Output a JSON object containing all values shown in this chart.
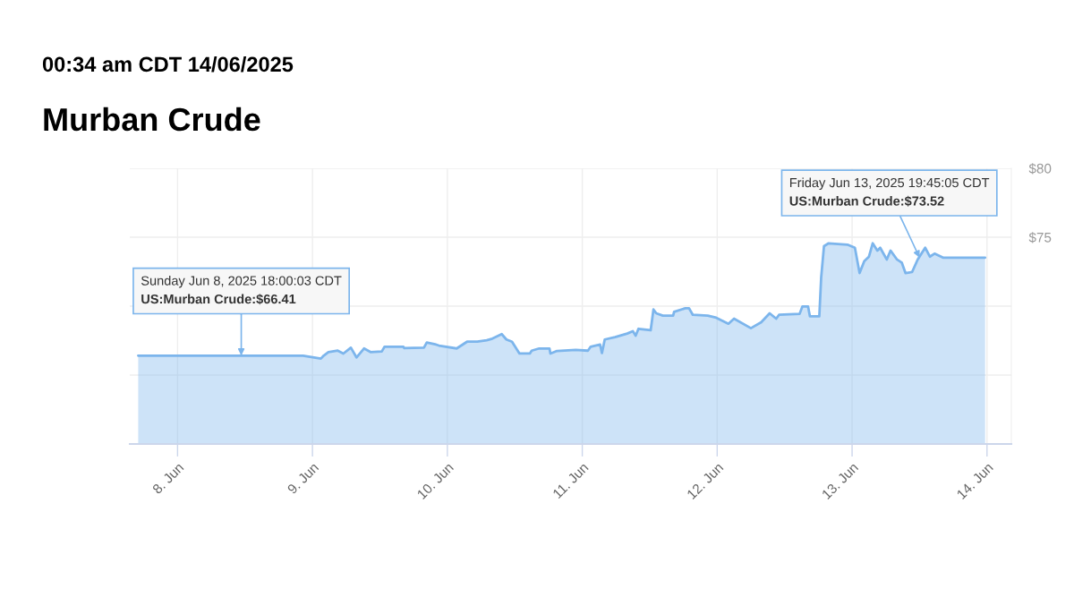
{
  "chart_data": {
    "type": "area",
    "title": "Murban Crude",
    "subtitle": "00:34 am CDT 14/06/2025",
    "x": [
      "2025-06-07T17:00",
      "2025-06-08T22:20",
      "2025-06-09T01:30",
      "2025-06-09T02:00",
      "2025-06-09T02:50",
      "2025-06-09T04:30",
      "2025-06-09T05:30",
      "2025-06-09T06:50",
      "2025-06-09T07:50",
      "2025-06-09T09:10",
      "2025-06-09T10:20",
      "2025-06-09T12:20",
      "2025-06-09T12:50",
      "2025-06-09T16:10",
      "2025-06-09T16:20",
      "2025-06-09T19:50",
      "2025-06-09T20:20",
      "2025-06-09T22:00",
      "2025-06-09T22:30",
      "2025-06-10T01:40",
      "2025-06-10T03:30",
      "2025-06-10T05:20",
      "2025-06-10T07:00",
      "2025-06-10T08:00",
      "2025-06-10T09:40",
      "2025-06-10T10:30",
      "2025-06-10T11:30",
      "2025-06-10T12:50",
      "2025-06-10T14:40",
      "2025-06-10T15:00",
      "2025-06-10T16:20",
      "2025-06-10T18:10",
      "2025-06-10T18:20",
      "2025-06-10T19:30",
      "2025-06-10T22:50",
      "2025-06-11T01:00",
      "2025-06-11T01:30",
      "2025-06-11T03:10",
      "2025-06-11T03:30",
      "2025-06-11T04:00",
      "2025-06-11T05:50",
      "2025-06-11T08:00",
      "2025-06-11T09:00",
      "2025-06-11T09:30",
      "2025-06-11T10:00",
      "2025-06-11T12:10",
      "2025-06-11T12:40",
      "2025-06-11T13:10",
      "2025-06-11T14:20",
      "2025-06-11T16:10",
      "2025-06-11T16:20",
      "2025-06-11T18:20",
      "2025-06-11T19:00",
      "2025-06-11T19:40",
      "2025-06-11T22:20",
      "2025-06-11T23:50",
      "2025-06-12T02:00",
      "2025-06-12T03:00",
      "2025-06-12T06:00",
      "2025-06-12T07:50",
      "2025-06-12T09:20",
      "2025-06-12T10:30",
      "2025-06-12T11:00",
      "2025-06-12T14:40",
      "2025-06-12T15:10",
      "2025-06-12T16:10",
      "2025-06-12T16:30",
      "2025-06-12T18:10",
      "2025-06-12T18:30",
      "2025-06-12T19:00",
      "2025-06-12T19:50",
      "2025-06-12T23:10",
      "2025-06-13T00:30",
      "2025-06-13T01:20",
      "2025-06-13T02:10",
      "2025-06-13T03:00",
      "2025-06-13T03:40",
      "2025-06-13T04:30",
      "2025-06-13T05:00",
      "2025-06-13T06:10",
      "2025-06-13T06:50",
      "2025-06-13T08:00",
      "2025-06-13T08:50",
      "2025-06-13T09:30",
      "2025-06-13T10:40",
      "2025-06-13T11:40",
      "2025-06-13T13:00",
      "2025-06-13T13:50",
      "2025-06-13T14:40",
      "2025-06-13T16:10",
      "2025-06-13T23:40"
    ],
    "series": [
      {
        "color": "#7cb5ec",
        "values": [
          66.41,
          66.41,
          66.19,
          66.41,
          66.67,
          66.77,
          66.56,
          66.99,
          66.28,
          66.93,
          66.67,
          66.71,
          67.06,
          67.06,
          66.95,
          66.99,
          67.36,
          67.21,
          67.14,
          66.93,
          67.42,
          67.42,
          67.53,
          67.64,
          67.97,
          67.58,
          67.42,
          66.56,
          66.56,
          66.77,
          66.93,
          66.93,
          66.56,
          66.75,
          66.82,
          66.77,
          67.06,
          67.21,
          66.6,
          67.58,
          67.75,
          68.01,
          68.18,
          67.86,
          68.36,
          68.25,
          69.76,
          69.48,
          69.31,
          69.31,
          69.59,
          69.85,
          69.85,
          69.37,
          69.31,
          69.16,
          68.72,
          69.09,
          68.4,
          68.83,
          69.48,
          69.09,
          69.37,
          69.44,
          69.98,
          69.98,
          69.26,
          69.26,
          72.08,
          74.35,
          74.56,
          74.46,
          74.24,
          72.4,
          73.27,
          73.59,
          74.56,
          74.03,
          74.24,
          73.38,
          74.03,
          73.38,
          73.16,
          72.4,
          72.47,
          73.38,
          74.24,
          73.59,
          73.81,
          73.52,
          73.52
        ]
      }
    ],
    "xlim": [
      "2025-06-07T15:30",
      "2025-06-14T04:20"
    ],
    "xticks": [
      {
        "value": "2025-06-08",
        "label": "8. Jun"
      },
      {
        "value": "2025-06-09",
        "label": "9. Jun"
      },
      {
        "value": "2025-06-10",
        "label": "10. Jun"
      },
      {
        "value": "2025-06-11",
        "label": "11. Jun"
      },
      {
        "value": "2025-06-12",
        "label": "12. Jun"
      },
      {
        "value": "2025-06-13",
        "label": "13. Jun"
      },
      {
        "value": "2025-06-14",
        "label": "14. Jun"
      }
    ],
    "ylim": [
      60,
      80
    ],
    "yticks": [
      {
        "value": 60,
        "label": null
      },
      {
        "value": 65,
        "label": null
      },
      {
        "value": 70,
        "label": null
      },
      {
        "value": 75,
        "label": "$75"
      },
      {
        "value": 80,
        "label": "$80"
      }
    ],
    "grid": true,
    "annotations": [
      {
        "text": "Sunday Jun 8, 2025 18:00:03 CDT\nUS:Murban Crude:$66.41",
        "x": "2025-06-08T11:20",
        "y": 66.41
      },
      {
        "text": "Friday Jun 13, 2025 19:45:05 CDT\nUS:Murban Crude:$73.52",
        "x": "2025-06-13T12:00",
        "y": 73.52
      }
    ]
  }
}
